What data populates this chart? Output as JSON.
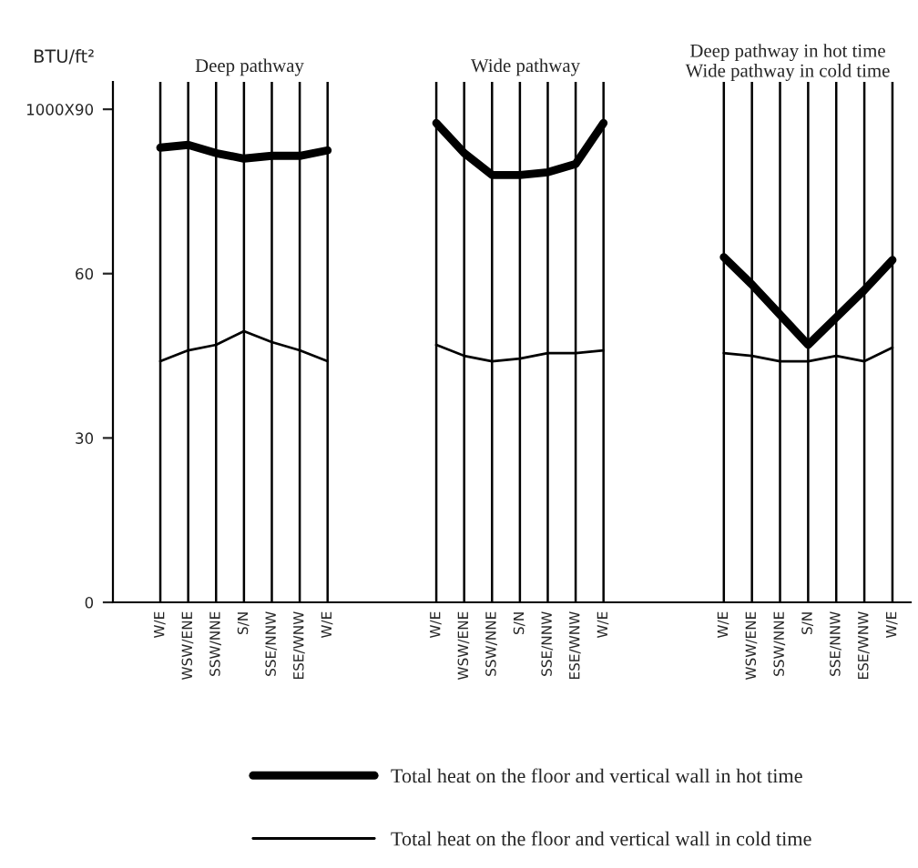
{
  "chart_data": [
    {
      "type": "line",
      "title": "Deep pathway",
      "ylabel": "BTU/ft²",
      "categories": [
        "W/E",
        "WSW/ENE",
        "SSW/NNE",
        "S/N",
        "SSE/NNW",
        "ESE/WNW",
        "W/E"
      ],
      "ylim": [
        0,
        95
      ],
      "yticks": [
        0,
        30,
        60,
        {
          "value": 90,
          "label": "1000X90"
        }
      ],
      "grid": "x",
      "legend": "bottom",
      "marker": "none",
      "series": [
        {
          "name": "Total heat on the floor and vertical wall in hot time",
          "color": "#000000",
          "values": [
            83,
            83.5,
            82,
            81,
            81.5,
            81.5,
            82.5
          ]
        },
        {
          "name": "Total heat on the floor and vertical wall in cold time",
          "color": "#000000",
          "values": [
            44,
            46,
            47,
            49.5,
            47.5,
            46,
            44
          ]
        }
      ]
    },
    {
      "type": "line",
      "title": "Wide pathway",
      "categories": [
        "W/E",
        "WSW/ENE",
        "SSW/NNE",
        "S/N",
        "SSE/NNW",
        "ESE/WNW",
        "W/E"
      ],
      "ylim": [
        0,
        95
      ],
      "tick_labels": "x",
      "grid": "x",
      "marker": "none",
      "series": [
        {
          "color": "#000000",
          "values": [
            87.5,
            82,
            78,
            78,
            78.5,
            80,
            87.5
          ]
        },
        {
          "color": "#000000",
          "values": [
            47,
            45,
            44,
            44.5,
            45.5,
            45.5,
            46
          ]
        }
      ]
    },
    {
      "type": "line",
      "title": "Deep pathway in hot time\nWide pathway in cold time",
      "categories": [
        "W/E",
        "WSW/ENE",
        "SSW/NNE",
        "S/N",
        "SSE/NNW",
        "ESE/WNW",
        "W/E"
      ],
      "ylim": [
        0,
        95
      ],
      "tick_labels": "x",
      "grid": "x",
      "marker": "none",
      "series": [
        {
          "color": "#000000",
          "values": [
            63,
            58,
            52.5,
            47,
            52,
            57,
            62.5
          ]
        },
        {
          "color": "#000000",
          "values": [
            45.5,
            45,
            44,
            44,
            45,
            44,
            46.5
          ]
        }
      ]
    }
  ]
}
